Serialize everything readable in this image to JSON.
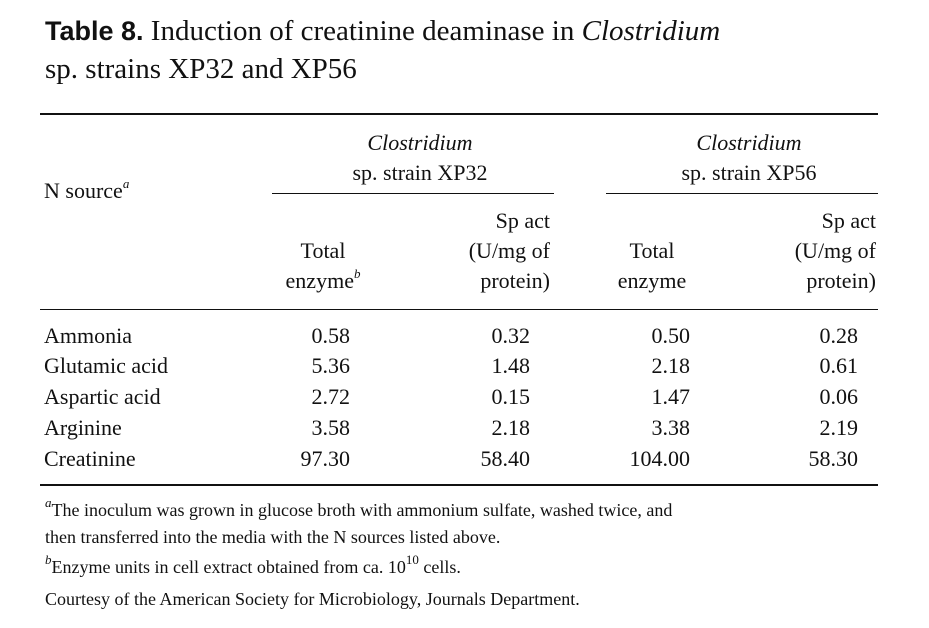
{
  "caption": {
    "label": "Table 8.",
    "text_before": "Induction of creatinine deaminase in ",
    "genus": "Clostridium",
    "line2": "sp. strains XP32 and XP56"
  },
  "header": {
    "n_source": "N source",
    "n_source_fn": "a",
    "strain1": {
      "genus": "Clostridium",
      "name": "sp. strain XP32"
    },
    "strain2": {
      "genus": "Clostridium",
      "name": "sp. strain XP56"
    },
    "total1_line1": "Total",
    "total1_line2": "enzyme",
    "total1_fn": "b",
    "spact_line1": "Sp act",
    "spact_line2": "(U/mg of",
    "spact_line3": "protein)",
    "total2_line1": "Total",
    "total2_line2": "enzyme"
  },
  "rows": [
    {
      "source": "Ammonia",
      "total1": "0.58",
      "sp1": "0.32",
      "total2": "0.50",
      "sp2": "0.28"
    },
    {
      "source": "Glutamic acid",
      "total1": "5.36",
      "sp1": "1.48",
      "total2": "2.18",
      "sp2": "0.61"
    },
    {
      "source": "Aspartic acid",
      "total1": "2.72",
      "sp1": "0.15",
      "total2": "1.47",
      "sp2": "0.06"
    },
    {
      "source": "Arginine",
      "total1": "3.58",
      "sp1": "2.18",
      "total2": "3.38",
      "sp2": "2.19"
    },
    {
      "source": "Creatinine",
      "total1": "97.30",
      "sp1": "58.40",
      "total2": "104.00",
      "sp2": "58.30"
    }
  ],
  "footnotes": {
    "a_mark": "a",
    "a_line1": "The inoculum was grown in glucose broth with ammonium sulfate, washed twice, and",
    "a_line2": "then transferred into the media with the N sources listed above.",
    "b_mark": "b",
    "b_text_before": "Enzyme units in cell extract obtained from ca. 10",
    "b_exp": "10",
    "b_text_after": " cells.",
    "courtesy": "Courtesy of the American Society for Microbiology, Journals Department."
  }
}
